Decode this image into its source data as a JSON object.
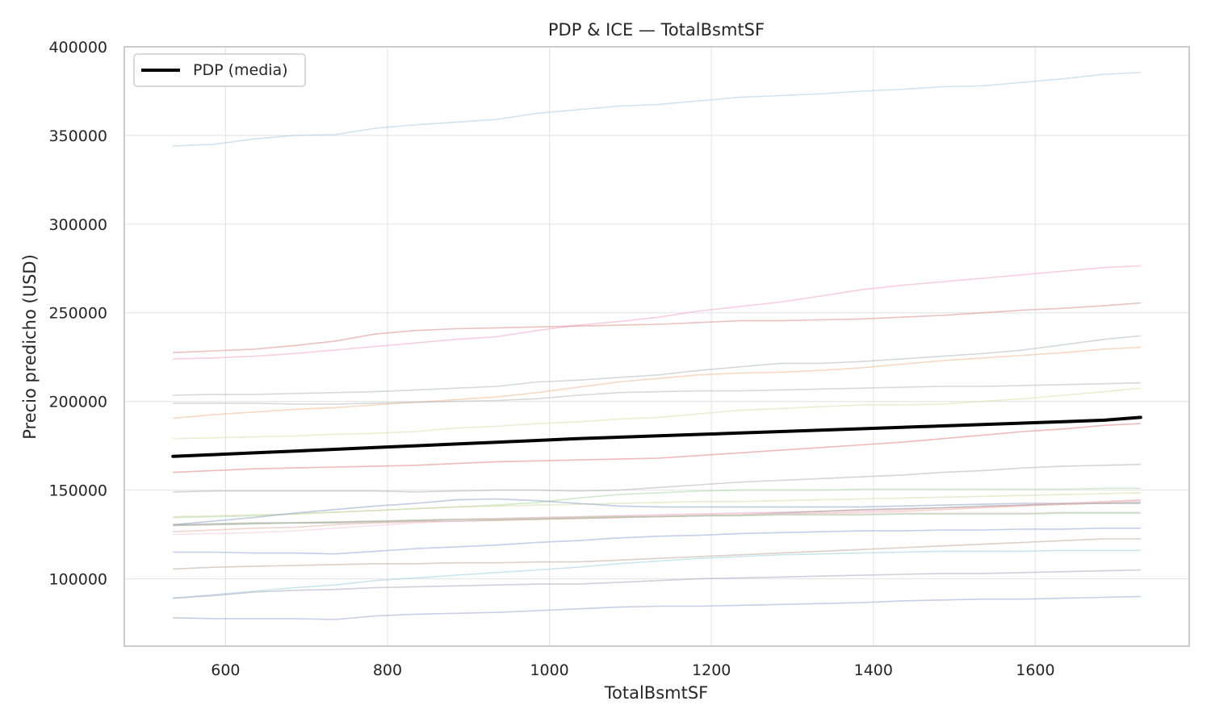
{
  "chart_data": {
    "type": "line",
    "title": "PDP & ICE — TotalBsmtSF",
    "xlabel": "TotalBsmtSF",
    "ylabel": "Precio predicho (USD)",
    "xlim": [
      475,
      1790
    ],
    "ylim": [
      62000,
      400000
    ],
    "xticks": [
      600,
      800,
      1000,
      1200,
      1400,
      1600
    ],
    "yticks": [
      100000,
      150000,
      200000,
      250000,
      300000,
      350000,
      400000
    ],
    "grid": true,
    "legend_position": "top-left",
    "legend": [
      "PDP (media)"
    ],
    "x": [
      535,
      585,
      635,
      685,
      735,
      785,
      835,
      885,
      935,
      985,
      1035,
      1085,
      1135,
      1185,
      1235,
      1285,
      1335,
      1385,
      1435,
      1485,
      1535,
      1585,
      1635,
      1685,
      1730
    ],
    "pdp": {
      "name": "PDP (media)",
      "color": "#000000",
      "values": [
        169000,
        170000,
        171000,
        172000,
        173000,
        174000,
        175000,
        176000,
        177000,
        178000,
        179000,
        179800,
        180600,
        181400,
        182200,
        183000,
        183800,
        184600,
        185400,
        186200,
        187000,
        187800,
        188600,
        189400,
        191000
      ]
    },
    "ice": [
      {
        "color": "#a6cee3",
        "values": [
          344000,
          345000,
          348000,
          350000,
          350500,
          354000,
          356000,
          357500,
          359000,
          362500,
          364500,
          366500,
          367500,
          369500,
          371500,
          372500,
          373500,
          375000,
          376000,
          377500,
          378000,
          380000,
          382000,
          384500,
          385500
        ]
      },
      {
        "color": "#f2a6c9",
        "values": [
          224000,
          224500,
          225500,
          227000,
          229000,
          231000,
          233000,
          235000,
          236500,
          240000,
          243000,
          245000,
          247500,
          251000,
          253500,
          256000,
          259500,
          263000,
          265500,
          267500,
          269500,
          271500,
          273500,
          275500,
          276500
        ]
      },
      {
        "color": "#d88c8c",
        "values": [
          227500,
          228500,
          229500,
          231500,
          234000,
          238000,
          240000,
          241000,
          241500,
          242000,
          242500,
          243000,
          243500,
          244500,
          245500,
          245500,
          246000,
          246500,
          247500,
          248500,
          250000,
          251500,
          252500,
          254000,
          255500
        ]
      },
      {
        "color": "#b0b8c0",
        "values": [
          203500,
          204000,
          204000,
          204500,
          205000,
          205500,
          206500,
          207500,
          208500,
          211000,
          212000,
          213500,
          215000,
          217500,
          219500,
          221500,
          221500,
          222500,
          224000,
          225500,
          227000,
          229000,
          232000,
          235000,
          237000
        ]
      },
      {
        "color": "#f0b890",
        "values": [
          190500,
          192500,
          194000,
          195500,
          196500,
          198000,
          199500,
          201000,
          202500,
          205000,
          208000,
          211000,
          213000,
          215000,
          216000,
          216500,
          217500,
          219000,
          221000,
          223000,
          224500,
          226000,
          227500,
          229500,
          230500
        ]
      },
      {
        "color": "#b8b8b8",
        "values": [
          199000,
          199000,
          199000,
          198500,
          198500,
          199000,
          199500,
          200000,
          200500,
          201500,
          203500,
          205000,
          205500,
          206000,
          206000,
          206500,
          207000,
          207500,
          208000,
          208500,
          208500,
          209000,
          209500,
          210000,
          210500
        ]
      },
      {
        "color": "#dcdcaa",
        "values": [
          179000,
          179500,
          180000,
          180500,
          181500,
          182000,
          183000,
          185000,
          186000,
          187500,
          188500,
          190000,
          191000,
          193000,
          195000,
          196000,
          197000,
          198000,
          198000,
          198500,
          200000,
          201500,
          203500,
          205500,
          207500
        ]
      },
      {
        "color": "#e08080",
        "values": [
          160000,
          161000,
          162000,
          162500,
          163000,
          163500,
          164000,
          165000,
          166000,
          166500,
          167000,
          167500,
          168000,
          169500,
          171000,
          172500,
          174000,
          175500,
          177000,
          179000,
          181000,
          183000,
          184500,
          186500,
          187500
        ]
      },
      {
        "color": "#b0b0b0",
        "values": [
          149000,
          149500,
          149500,
          149500,
          149500,
          149500,
          149000,
          149500,
          150000,
          150000,
          149500,
          150000,
          151500,
          153000,
          154500,
          155500,
          156500,
          157500,
          158500,
          160000,
          161000,
          162500,
          163500,
          164000,
          164500
        ]
      },
      {
        "color": "#a8d8a0",
        "values": [
          134500,
          135000,
          135500,
          136500,
          137500,
          138500,
          139500,
          140500,
          141500,
          143000,
          145500,
          147500,
          148500,
          149500,
          150000,
          150000,
          150000,
          150500,
          150500,
          150500,
          150500,
          150500,
          150500,
          151000,
          151000
        ]
      },
      {
        "color": "#d8d8a8",
        "values": [
          135000,
          135500,
          136000,
          136500,
          137500,
          138500,
          139500,
          140500,
          141000,
          141500,
          142000,
          142500,
          143000,
          143500,
          143500,
          144000,
          144500,
          145000,
          145500,
          146000,
          146500,
          147000,
          147500,
          148000,
          148500
        ]
      },
      {
        "color": "#8ca0c8",
        "values": [
          130500,
          132500,
          134500,
          137000,
          139000,
          141000,
          142500,
          144500,
          145000,
          144000,
          142500,
          141000,
          140500,
          140500,
          140500,
          140500,
          140500,
          140500,
          141000,
          141500,
          142000,
          142500,
          142500,
          142500,
          142500
        ]
      },
      {
        "color": "#e8a0c0",
        "values": [
          130000,
          130500,
          131000,
          131500,
          132000,
          132500,
          133000,
          133500,
          134000,
          134500,
          135000,
          135500,
          136000,
          136500,
          137000,
          137500,
          138000,
          138500,
          139000,
          140000,
          140500,
          141500,
          142500,
          143500,
          144500
        ]
      },
      {
        "color": "#a0a0a0",
        "values": [
          130500,
          131000,
          131500,
          131500,
          131500,
          132000,
          132500,
          132500,
          133000,
          133500,
          134000,
          134500,
          135000,
          135500,
          136000,
          137000,
          138000,
          139000,
          139500,
          140000,
          141000,
          141500,
          142000,
          142500,
          143000
        ]
      },
      {
        "color": "#e8b0a0",
        "values": [
          126500,
          127500,
          128500,
          129000,
          130500,
          131500,
          132000,
          132500,
          133000,
          133500,
          134000,
          134500,
          135000,
          135500,
          136000,
          136500,
          137000,
          137500,
          138000,
          139000,
          140000,
          141000,
          142000,
          143000,
          144000
        ]
      },
      {
        "color": "#f0c8d8",
        "values": [
          125000,
          125500,
          126000,
          127000,
          128500,
          130000,
          131500,
          132500,
          133500,
          134000,
          134500,
          135000,
          135500,
          136000,
          136000,
          136500,
          136500,
          136500,
          137000,
          137000,
          137000,
          137000,
          137500,
          137500,
          137500
        ]
      },
      {
        "color": "#98c898",
        "values": [
          130000,
          130500,
          131000,
          131500,
          132000,
          132500,
          133000,
          133500,
          133500,
          134000,
          134500,
          135000,
          135000,
          135500,
          135500,
          136000,
          136000,
          136000,
          136500,
          136500,
          136500,
          136500,
          137000,
          137000,
          137000
        ]
      },
      {
        "color": "#90a8d8",
        "values": [
          115000,
          115000,
          114500,
          114500,
          114000,
          115500,
          117000,
          118000,
          119000,
          120500,
          121500,
          123000,
          124000,
          124500,
          125500,
          126000,
          126500,
          127000,
          127000,
          127500,
          127500,
          128000,
          128000,
          128500,
          128500
        ]
      },
      {
        "color": "#c0a898",
        "values": [
          105500,
          106500,
          107000,
          107500,
          108000,
          108500,
          108500,
          109000,
          109000,
          109500,
          109500,
          110500,
          111500,
          112500,
          113500,
          114500,
          115500,
          116500,
          117500,
          118500,
          119500,
          120500,
          121500,
          122500,
          122500
        ]
      },
      {
        "color": "#a0d0e0",
        "values": [
          89000,
          91000,
          93000,
          95000,
          96500,
          99000,
          100500,
          102000,
          103500,
          105000,
          106500,
          108500,
          110000,
          111500,
          112500,
          113500,
          114000,
          114500,
          115000,
          115500,
          115500,
          115500,
          116000,
          116000,
          116000
        ]
      },
      {
        "color": "#a8a8c0",
        "values": [
          89000,
          90500,
          92500,
          93500,
          94000,
          95000,
          95500,
          96000,
          96500,
          97000,
          97000,
          98000,
          99000,
          100000,
          100500,
          101000,
          101500,
          102000,
          102500,
          103000,
          103000,
          103500,
          104000,
          104500,
          105000
        ]
      },
      {
        "color": "#98a8d0",
        "values": [
          78000,
          77500,
          77500,
          77500,
          77000,
          79000,
          80000,
          80500,
          81000,
          82000,
          83000,
          84000,
          84500,
          84500,
          85000,
          85500,
          86000,
          86500,
          87500,
          88000,
          88500,
          88500,
          89000,
          89500,
          90000
        ]
      }
    ]
  }
}
